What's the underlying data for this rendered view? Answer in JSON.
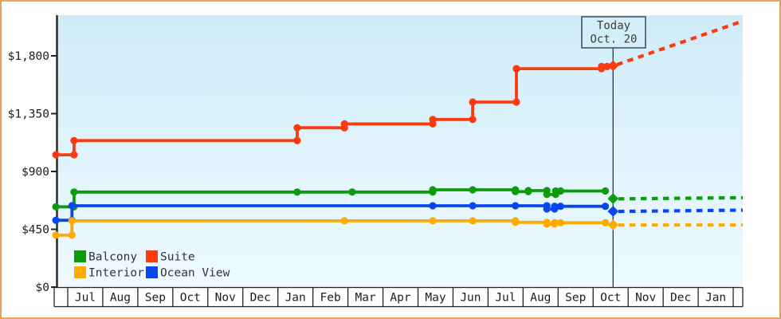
{
  "frame": {
    "border_color": "#e9a257",
    "background": "#ffffff"
  },
  "chart_data": {
    "type": "line",
    "subtype": "step-price-history",
    "title": "",
    "today_marker": {
      "label_line1": "Today",
      "label_line2": "Oct. 20",
      "month_position": 15.57,
      "box_fill": "#d4eefa",
      "box_stroke": "#45565e"
    },
    "y_axis": {
      "ticks": [
        {
          "value": 0,
          "label": "$0"
        },
        {
          "value": 450,
          "label": "$450"
        },
        {
          "value": 900,
          "label": "$900"
        },
        {
          "value": 1350,
          "label": "$1,350"
        },
        {
          "value": 1800,
          "label": "$1,800"
        }
      ],
      "visible_max": 2100,
      "currency": "USD"
    },
    "x_axis": {
      "months": [
        "Jul",
        "Aug",
        "Sep",
        "Oct",
        "Nov",
        "Dec",
        "Jan",
        "Feb",
        "Mar",
        "Apr",
        "May",
        "Jun",
        "Jul",
        "Aug",
        "Sep",
        "Oct",
        "Nov",
        "Dec",
        "Jan"
      ]
    },
    "series": [
      {
        "name": "Balcony",
        "color": "#0b9b0b",
        "points": [
          [
            -0.34,
            625
          ],
          [
            0.18,
            625
          ],
          [
            0.18,
            740
          ],
          [
            6.55,
            740
          ],
          [
            8.12,
            740
          ],
          [
            10.42,
            740
          ],
          [
            10.42,
            757
          ],
          [
            11.56,
            757
          ],
          [
            12.78,
            757
          ],
          [
            12.78,
            743
          ],
          [
            13.15,
            743
          ],
          [
            13.15,
            751
          ],
          [
            13.68,
            751
          ],
          [
            13.68,
            721
          ],
          [
            13.93,
            721
          ],
          [
            13.93,
            748
          ],
          [
            14.07,
            748
          ],
          [
            15.35,
            748
          ]
        ],
        "current_point": [
          15.57,
          689
        ],
        "projection": [
          [
            15.72,
            687
          ],
          [
            19.27,
            696
          ]
        ]
      },
      {
        "name": "Suite",
        "color": "#fb3b0e",
        "points": [
          [
            -0.34,
            1030
          ],
          [
            0.18,
            1030
          ],
          [
            0.18,
            1140
          ],
          [
            6.55,
            1140
          ],
          [
            6.55,
            1240
          ],
          [
            7.9,
            1240
          ],
          [
            7.9,
            1270
          ],
          [
            10.42,
            1270
          ],
          [
            10.42,
            1305
          ],
          [
            11.56,
            1305
          ],
          [
            11.56,
            1440
          ],
          [
            12.81,
            1440
          ],
          [
            12.81,
            1700
          ],
          [
            15.24,
            1700
          ],
          [
            15.24,
            1717
          ],
          [
            15.4,
            1717
          ]
        ],
        "current_point": [
          15.57,
          1723
        ],
        "projection": [
          [
            15.68,
            1731
          ],
          [
            19.27,
            2070
          ]
        ]
      },
      {
        "name": "Interior",
        "color": "#ffaa00",
        "points": [
          [
            -0.34,
            405
          ],
          [
            0.12,
            405
          ],
          [
            0.12,
            516
          ],
          [
            7.9,
            516
          ],
          [
            10.42,
            516
          ],
          [
            11.56,
            516
          ],
          [
            12.78,
            516
          ],
          [
            12.78,
            504
          ],
          [
            13.68,
            504
          ],
          [
            13.68,
            491
          ],
          [
            13.9,
            491
          ],
          [
            13.9,
            501
          ],
          [
            14.07,
            501
          ],
          [
            15.35,
            501
          ]
        ],
        "current_point": [
          15.57,
          484
        ],
        "projection": [
          [
            15.72,
            483
          ],
          [
            19.27,
            483
          ]
        ]
      },
      {
        "name": "Ocean View",
        "color": "#0a46f0",
        "points": [
          [
            -0.34,
            520
          ],
          [
            0.12,
            520
          ],
          [
            0.12,
            633
          ],
          [
            10.42,
            633
          ],
          [
            11.56,
            633
          ],
          [
            12.78,
            633
          ],
          [
            13.68,
            633
          ],
          [
            13.68,
            608
          ],
          [
            13.9,
            608
          ],
          [
            13.9,
            629
          ],
          [
            14.07,
            629
          ],
          [
            15.35,
            629
          ]
        ],
        "current_point": [
          15.57,
          590
        ],
        "projection": [
          [
            15.72,
            589
          ],
          [
            19.27,
            599
          ]
        ]
      }
    ],
    "legend": {
      "position": "bottom-left",
      "grid": [
        [
          "Balcony",
          "Suite"
        ],
        [
          "Interior",
          "Ocean View"
        ]
      ]
    },
    "layout": {
      "plot_background_top": "#d0ecf9",
      "plot_background_bottom": "#eefaff",
      "axis_color": "#222222",
      "text_color": "#1c1c1c",
      "grid": "off",
      "legend_text_color": "#333333"
    }
  }
}
